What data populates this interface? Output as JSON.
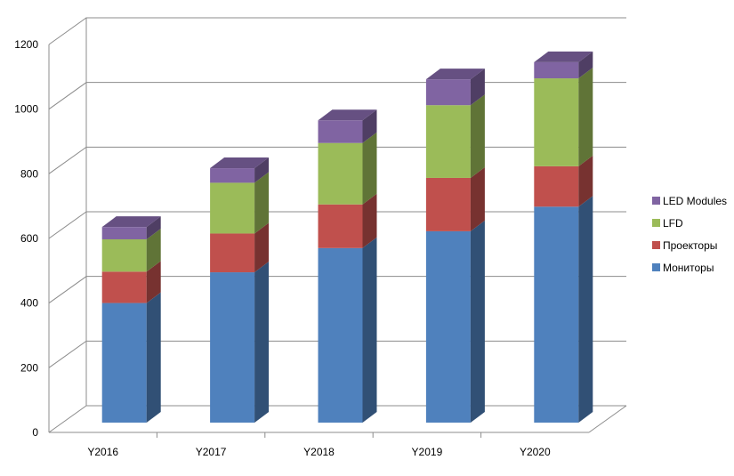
{
  "chart_data": {
    "type": "bar",
    "stacked": true,
    "three_d": true,
    "categories": [
      "Y2016",
      "Y2017",
      "Y2018",
      "Y2019",
      "Y2020"
    ],
    "series": [
      {
        "name": "Мониторы",
        "values": [
          370,
          465,
          540,
          592,
          668
        ],
        "color": "#4F81BD"
      },
      {
        "name": "Проекторы",
        "values": [
          97,
          120,
          135,
          165,
          125
        ],
        "color": "#C0504D"
      },
      {
        "name": "LFD",
        "values": [
          100,
          157,
          190,
          225,
          272
        ],
        "color": "#9BBB59"
      },
      {
        "name": "LED Modules",
        "values": [
          38,
          45,
          70,
          80,
          50
        ],
        "color": "#8064A2"
      }
    ],
    "yticks": [
      "0",
      "200",
      "400",
      "600",
      "800",
      "1000",
      "1200"
    ],
    "ylim": [
      0,
      1200
    ],
    "grid": true,
    "legend_position": "right",
    "title": "",
    "xlabel": "",
    "ylabel": ""
  }
}
